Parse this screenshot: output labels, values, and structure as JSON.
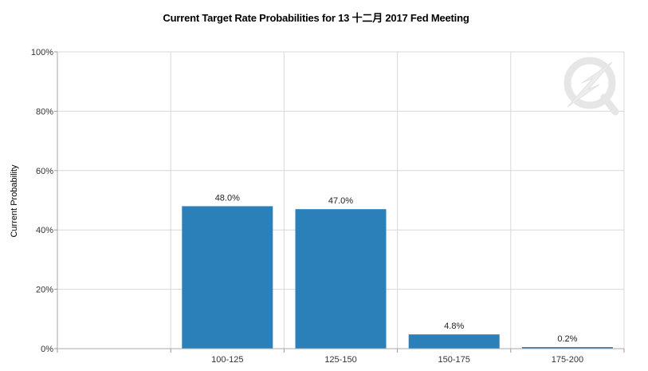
{
  "chart_data": {
    "type": "bar",
    "title": "Current Target Rate Probabilities for 13 十二月 2017  Fed Meeting",
    "xlabel": "",
    "ylabel": "Current Probability",
    "categories": [
      "100-125",
      "125-150",
      "150-175",
      "175-200"
    ],
    "values": [
      48.0,
      47.0,
      4.8,
      0.2
    ],
    "value_labels": [
      "48.0%",
      "47.0%",
      "4.8%",
      "0.2%"
    ],
    "y_ticks": [
      {
        "value": 0,
        "label": "0%"
      },
      {
        "value": 20,
        "label": "20%"
      },
      {
        "value": 40,
        "label": "40%"
      },
      {
        "value": 60,
        "label": "60%"
      },
      {
        "value": 80,
        "label": "80%"
      },
      {
        "value": 100,
        "label": "100%"
      }
    ],
    "ylim": [
      0,
      100
    ],
    "grid": true,
    "legend": "none",
    "bar_color": "#2c80b9",
    "grid_color": "#d8d8d8",
    "watermark_icon": "q-lightning-logo-icon"
  }
}
